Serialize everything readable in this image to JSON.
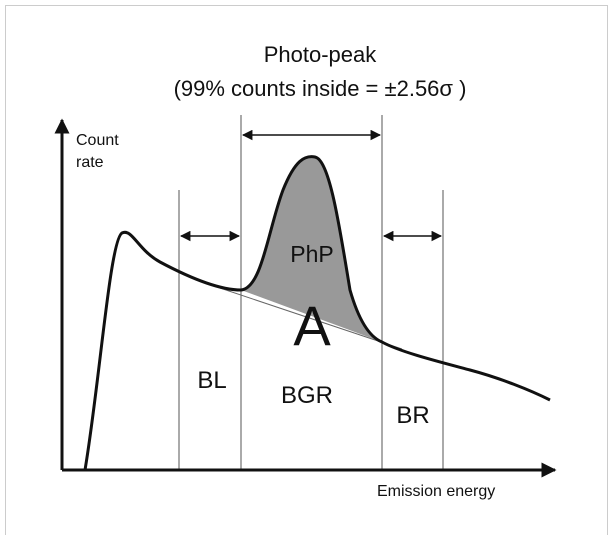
{
  "title": {
    "line1": "Photo-peak",
    "line2": "(99% counts inside = ±2.56σ )"
  },
  "axes": {
    "y_label_1": "Count",
    "y_label_2": "rate",
    "x_label": "Emission energy"
  },
  "regions": {
    "peak": "PhP",
    "area": "A",
    "left": "BL",
    "background": "BGR",
    "right": "BR"
  }
}
